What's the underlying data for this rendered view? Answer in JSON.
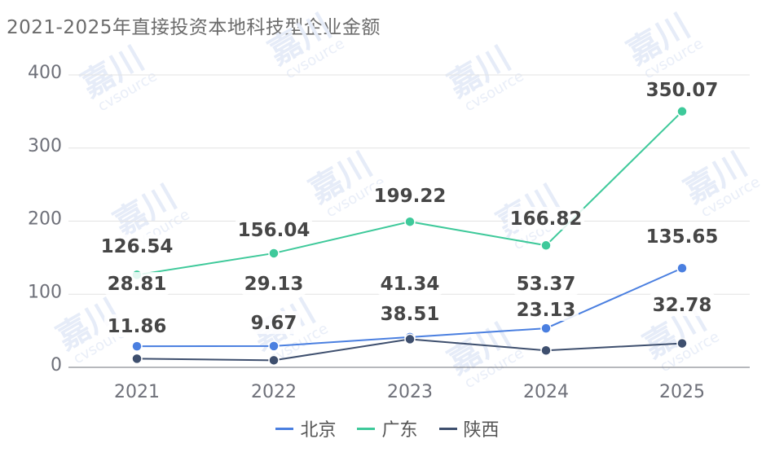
{
  "chart_data": {
    "type": "line",
    "title": "2021-2025年直接投资本地科技型企业金额",
    "categories": [
      "2021",
      "2022",
      "2023",
      "2024",
      "2025"
    ],
    "ylim": [
      0,
      400
    ],
    "yticks": [
      0,
      100,
      200,
      300,
      400
    ],
    "grid": true,
    "legend_position": "bottom-center",
    "series": [
      {
        "name": "北京",
        "color": "#4a7fe0",
        "values": [
          28.81,
          29.13,
          41.34,
          53.37,
          135.65
        ],
        "labels": [
          "28.81",
          "29.13",
          "41.34",
          "53.37",
          "135.65"
        ]
      },
      {
        "name": "广东",
        "color": "#3ec99a",
        "values": [
          126.54,
          156.04,
          199.22,
          166.82,
          350.07
        ],
        "labels": [
          "126.54",
          "156.04",
          "199.22",
          "166.82",
          "350.07"
        ]
      },
      {
        "name": "陕西",
        "color": "#3e4f6e",
        "values": [
          11.86,
          9.67,
          38.51,
          23.13,
          32.78
        ],
        "labels": [
          "11.86",
          "9.67",
          "38.51",
          "23.13",
          "32.78"
        ]
      }
    ],
    "watermark": {
      "brand": "嘉川",
      "sub": "cvsource"
    }
  }
}
